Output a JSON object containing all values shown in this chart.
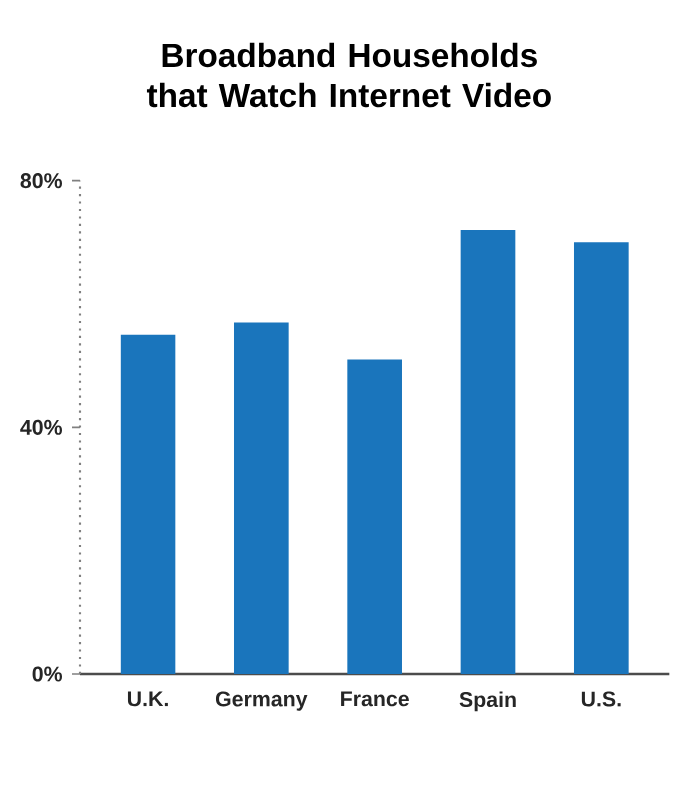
{
  "chart_data": {
    "type": "bar",
    "title": "Broadband Households that Watch Internet Video",
    "categories": [
      "U.K.",
      "Germany",
      "France",
      "Spain",
      "U.S."
    ],
    "values": [
      55,
      57,
      51,
      72,
      70
    ],
    "color": "#1a75bc",
    "ylim": [
      0,
      80
    ],
    "yticks": [
      {
        "value": 0,
        "label": "0%"
      },
      {
        "value": 40,
        "label": "40%"
      },
      {
        "value": 80,
        "label": "80%"
      }
    ],
    "grid": false
  }
}
